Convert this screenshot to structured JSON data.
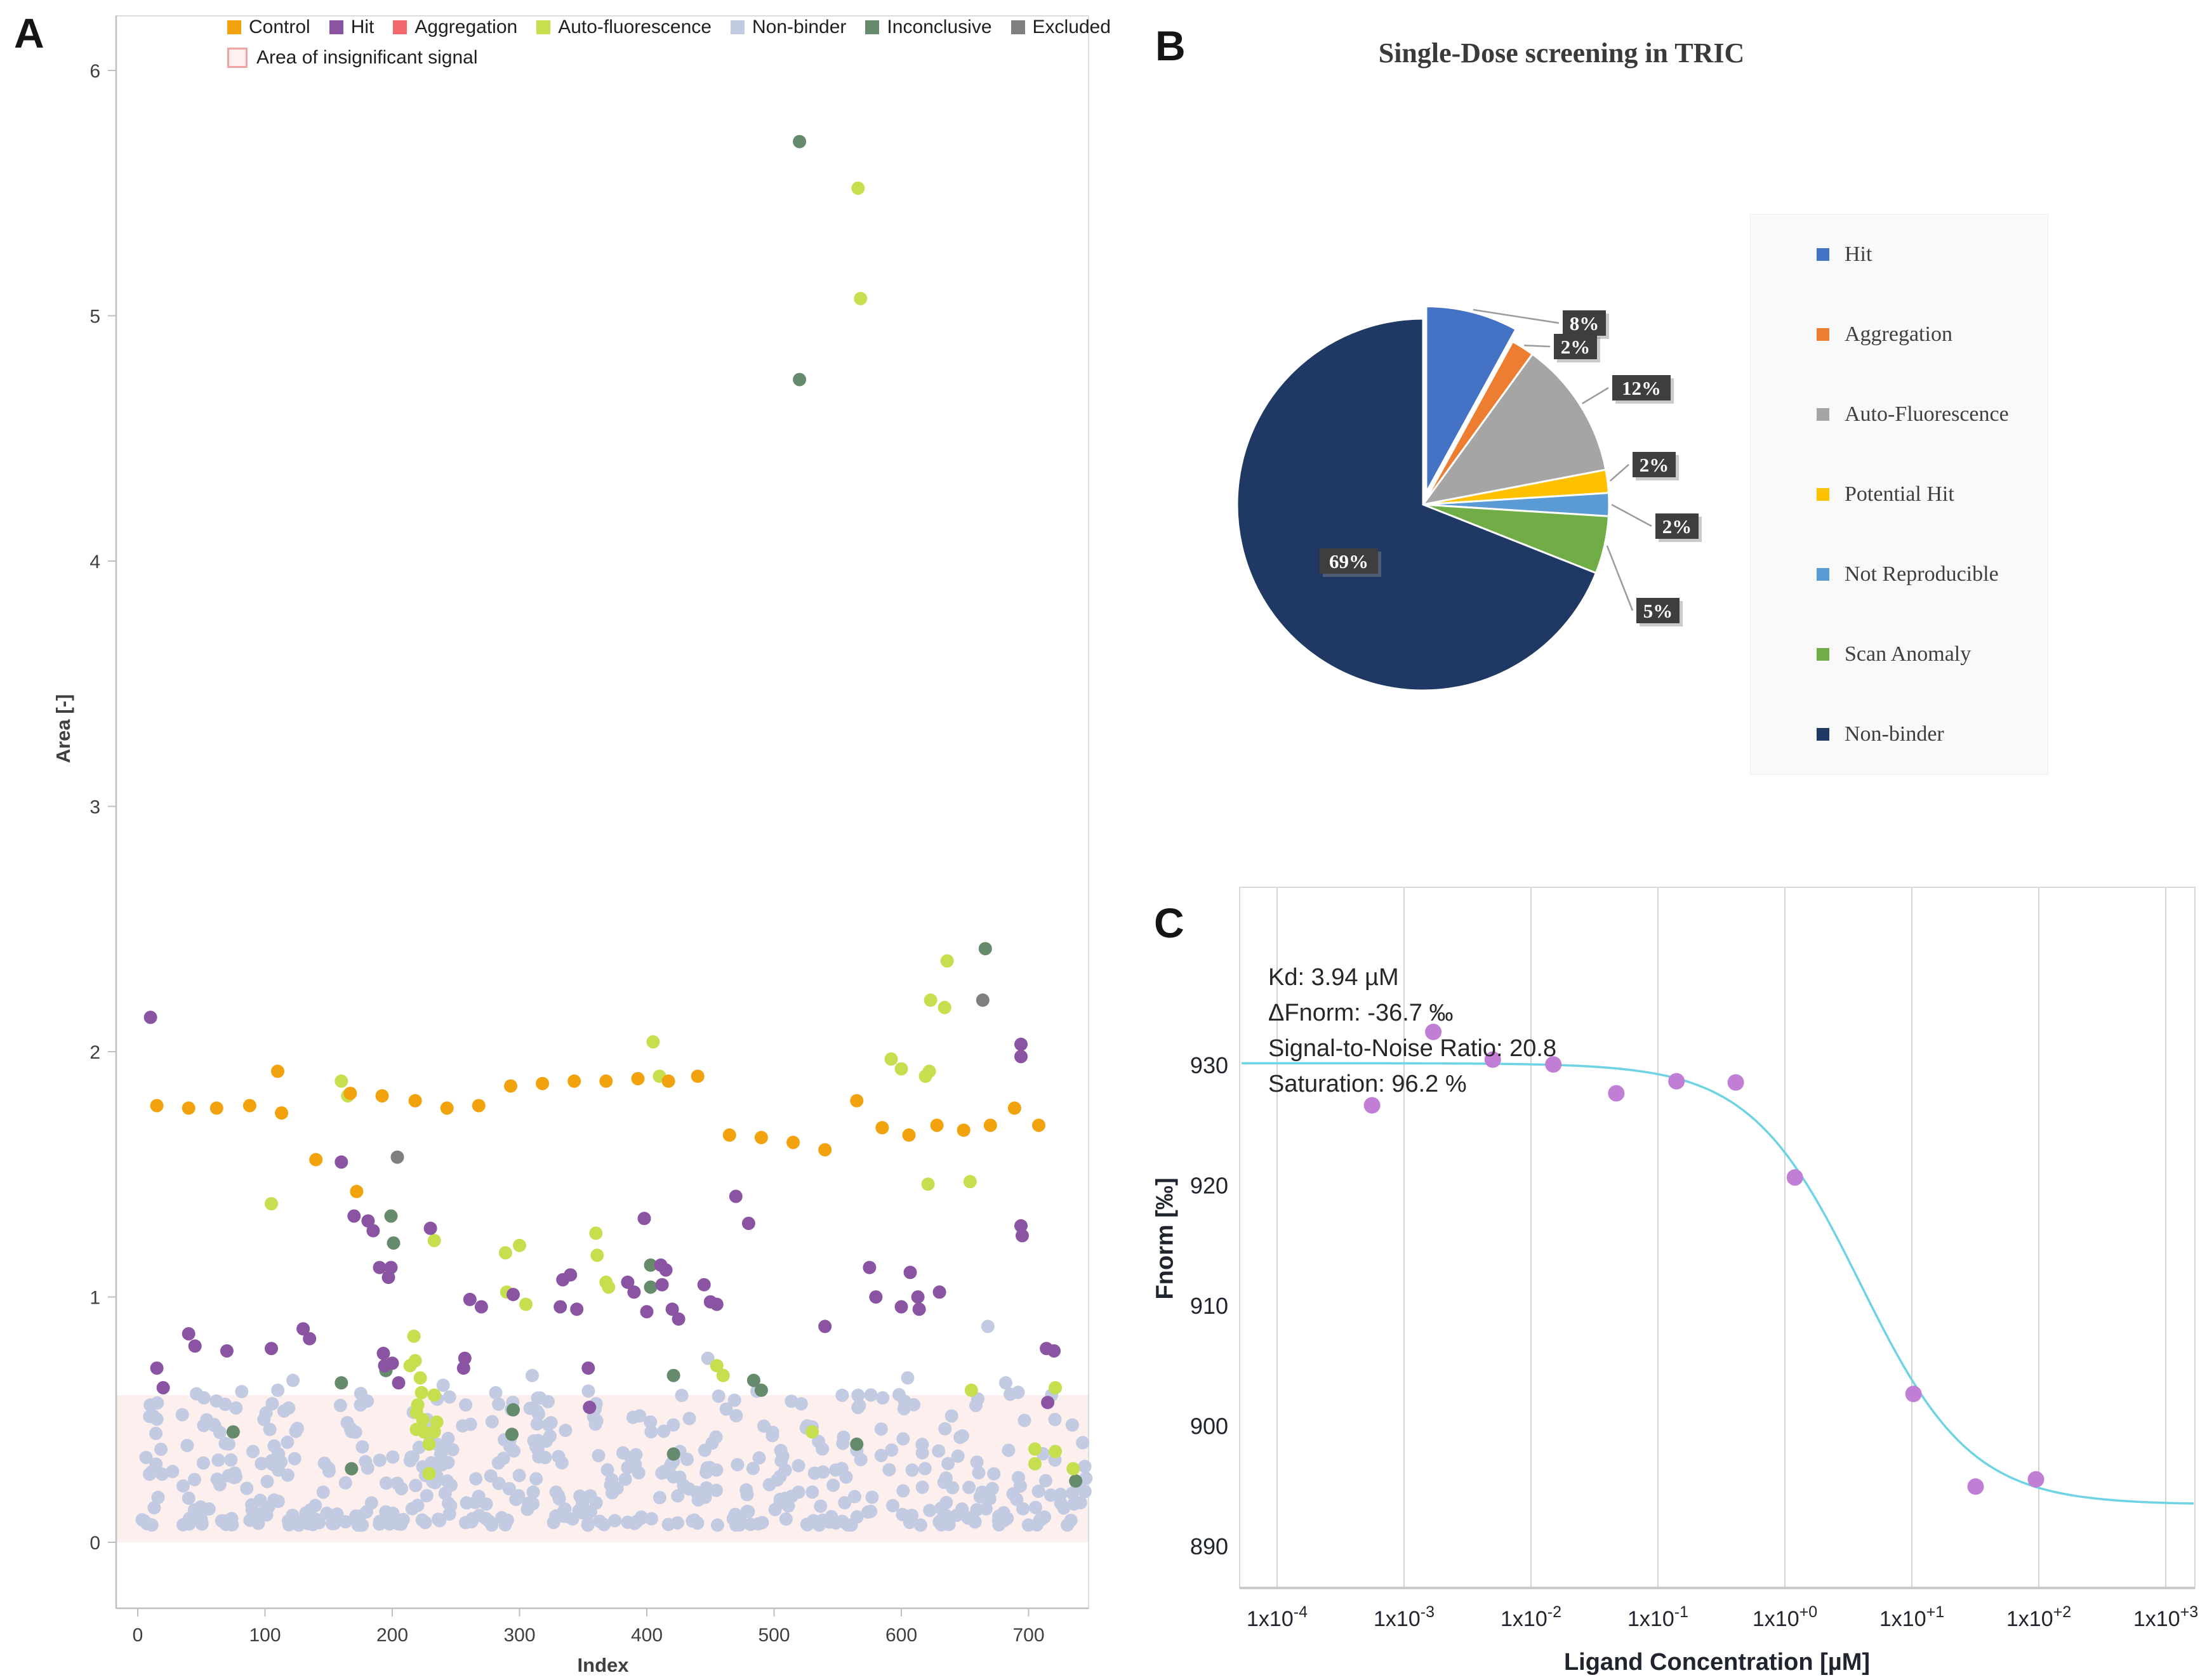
{
  "panel_a": {
    "label": "A",
    "xlabel": "Index",
    "ylabel": "Area [-]",
    "band_label": "Area of insignificant signal",
    "legend_items": [
      {
        "label": "Control",
        "color": "#F2A20D"
      },
      {
        "label": "Hit",
        "color": "#8B54A3"
      },
      {
        "label": "Aggregation",
        "color": "#F2686C"
      },
      {
        "label": "Auto-fluorescence",
        "color": "#C6DF4F"
      },
      {
        "label": "Non-binder",
        "color": "#C2CBE2"
      },
      {
        "label": "Inconclusive",
        "color": "#668A6C"
      },
      {
        "label": "Excluded",
        "color": "#7F7F7F"
      }
    ]
  },
  "panel_b": {
    "label": "B",
    "title": "Single-Dose screening in TRIC",
    "legend_items": [
      {
        "label": "Hit",
        "color": "#4472C4"
      },
      {
        "label": "Aggregation",
        "color": "#ED7D31"
      },
      {
        "label": "Auto-Fluorescence",
        "color": "#A5A5A5"
      },
      {
        "label": "Potential Hit",
        "color": "#FFC000"
      },
      {
        "label": "Not Reproducible",
        "color": "#5B9BD5"
      },
      {
        "label": "Scan Anomaly",
        "color": "#70AD47"
      },
      {
        "label": "Non-binder",
        "color": "#1F3864"
      }
    ]
  },
  "panel_c": {
    "label": "C",
    "xlabel": "Ligand Concentration [µM]",
    "ylabel": "Fnorm [‰]",
    "annotation_lines": [
      "Kd: 3.94 µM",
      "ΔFnorm: -36.7 ‰",
      "Signal-to-Noise Ratio: 20.8",
      "Saturation: 96.2 %"
    ]
  },
  "chart_data": [
    {
      "id": "panel-a-scatter",
      "type": "scatter",
      "xlabel": "Index",
      "ylabel": "Area [-]",
      "xlim": [
        0,
        760
      ],
      "ylim": [
        0,
        6.2
      ],
      "x_ticks": [
        0,
        100,
        200,
        300,
        400,
        500,
        600,
        700
      ],
      "y_ticks": [
        0,
        1,
        2,
        3,
        4,
        5,
        6
      ],
      "grid": false,
      "legend_position": "top",
      "insignificant_band": {
        "label": "Area of insignificant signal",
        "y_min": 0,
        "y_max": 0.6,
        "fill": "#FCEFED"
      },
      "series": [
        {
          "name": "Non-binder",
          "color": "#C2CBE2",
          "points": [
            [
              35,
              0.52
            ],
            [
              122,
              0.66
            ],
            [
              240,
              0.64
            ],
            [
              310,
              0.68
            ],
            [
              448,
              0.75
            ],
            [
              605,
              0.67
            ],
            [
              668,
              0.88
            ],
            [
              682,
              0.65
            ]
          ],
          "generated": {
            "count": 520,
            "seed": 11,
            "x_min": 3,
            "x_max": 746,
            "y_base": 0.07,
            "y_span": 0.55,
            "power": 1.7
          }
        },
        {
          "name": "Excluded",
          "color": "#7F7F7F",
          "points": [
            [
              204,
              1.57
            ],
            [
              664,
              2.21
            ]
          ]
        },
        {
          "name": "Inconclusive",
          "color": "#668A6C",
          "points": [
            [
              75,
              0.45
            ],
            [
              160,
              0.65
            ],
            [
              168,
              0.3
            ],
            [
              195,
              0.7
            ],
            [
              199,
              1.33
            ],
            [
              201,
              1.22
            ],
            [
              294,
              0.44
            ],
            [
              295,
              0.54
            ],
            [
              403,
              1.13
            ],
            [
              403,
              1.04
            ],
            [
              421,
              0.68
            ],
            [
              421,
              0.36
            ],
            [
              484,
              0.66
            ],
            [
              490,
              0.62
            ],
            [
              520,
              5.71
            ],
            [
              520,
              4.74
            ],
            [
              565,
              0.4
            ],
            [
              666,
              2.42
            ],
            [
              737,
              0.25
            ]
          ]
        },
        {
          "name": "Aggregation",
          "color": "#F2686C",
          "points": []
        },
        {
          "name": "Auto-fluorescence",
          "color": "#C6DF4F",
          "points": [
            [
              105,
              1.38
            ],
            [
              160,
              1.88
            ],
            [
              165,
              1.82
            ],
            [
              214,
              0.72
            ],
            [
              217,
              0.84
            ],
            [
              218,
              0.74
            ],
            [
              219,
              0.53
            ],
            [
              219,
              0.46
            ],
            [
              220,
              0.56
            ],
            [
              222,
              0.67
            ],
            [
              223,
              0.61
            ],
            [
              224,
              0.5
            ],
            [
              225,
              0.45
            ],
            [
              229,
              0.4
            ],
            [
              229,
              0.28
            ],
            [
              233,
              1.23
            ],
            [
              233,
              0.6
            ],
            [
              233,
              0.45
            ],
            [
              235,
              0.49
            ],
            [
              289,
              1.18
            ],
            [
              290,
              1.02
            ],
            [
              300,
              1.21
            ],
            [
              305,
              0.97
            ],
            [
              360,
              1.26
            ],
            [
              361,
              1.17
            ],
            [
              368,
              1.06
            ],
            [
              370,
              1.04
            ],
            [
              405,
              2.04
            ],
            [
              410,
              1.9
            ],
            [
              455,
              0.72
            ],
            [
              460,
              0.68
            ],
            [
              530,
              0.45
            ],
            [
              566,
              5.52
            ],
            [
              568,
              5.07
            ],
            [
              592,
              1.97
            ],
            [
              600,
              1.93
            ],
            [
              619,
              1.9
            ],
            [
              621,
              1.46
            ],
            [
              622,
              1.92
            ],
            [
              623,
              2.21
            ],
            [
              634,
              2.18
            ],
            [
              636,
              2.37
            ],
            [
              654,
              1.47
            ],
            [
              655,
              0.62
            ],
            [
              705,
              0.38
            ],
            [
              705,
              0.32
            ],
            [
              721,
              0.63
            ],
            [
              721,
              0.37
            ],
            [
              735,
              0.3
            ]
          ]
        },
        {
          "name": "Control",
          "color": "#F2A20D",
          "points": [
            [
              15,
              1.78
            ],
            [
              40,
              1.77
            ],
            [
              62,
              1.77
            ],
            [
              88,
              1.78
            ],
            [
              110,
              1.92
            ],
            [
              113,
              1.75
            ],
            [
              140,
              1.56
            ],
            [
              167,
              1.83
            ],
            [
              172,
              1.43
            ],
            [
              192,
              1.82
            ],
            [
              218,
              1.8
            ],
            [
              243,
              1.77
            ],
            [
              268,
              1.78
            ],
            [
              293,
              1.86
            ],
            [
              318,
              1.87
            ],
            [
              343,
              1.88
            ],
            [
              368,
              1.88
            ],
            [
              393,
              1.89
            ],
            [
              417,
              1.88
            ],
            [
              440,
              1.9
            ],
            [
              465,
              1.66
            ],
            [
              490,
              1.65
            ],
            [
              515,
              1.63
            ],
            [
              540,
              1.6
            ],
            [
              565,
              1.8
            ],
            [
              585,
              1.69
            ],
            [
              606,
              1.66
            ],
            [
              628,
              1.7
            ],
            [
              649,
              1.68
            ],
            [
              670,
              1.7
            ],
            [
              689,
              1.77
            ],
            [
              708,
              1.7
            ]
          ]
        },
        {
          "name": "Hit",
          "color": "#8B54A3",
          "points": [
            [
              10,
              2.14
            ],
            [
              15,
              0.71
            ],
            [
              20,
              0.63
            ],
            [
              40,
              0.85
            ],
            [
              45,
              0.8
            ],
            [
              70,
              0.78
            ],
            [
              105,
              0.79
            ],
            [
              130,
              0.87
            ],
            [
              135,
              0.83
            ],
            [
              160,
              1.55
            ],
            [
              170,
              1.33
            ],
            [
              181,
              1.31
            ],
            [
              185,
              1.27
            ],
            [
              190,
              1.12
            ],
            [
              197,
              1.08
            ],
            [
              199,
              1.12
            ],
            [
              193,
              0.77
            ],
            [
              194,
              0.72
            ],
            [
              200,
              0.73
            ],
            [
              205,
              0.65
            ],
            [
              230,
              1.28
            ],
            [
              256,
              0.71
            ],
            [
              257,
              0.75
            ],
            [
              261,
              0.99
            ],
            [
              270,
              0.96
            ],
            [
              295,
              1.01
            ],
            [
              332,
              0.96
            ],
            [
              334,
              1.07
            ],
            [
              340,
              1.09
            ],
            [
              345,
              0.95
            ],
            [
              354,
              0.71
            ],
            [
              355,
              0.55
            ],
            [
              385,
              1.06
            ],
            [
              390,
              1.02
            ],
            [
              398,
              1.32
            ],
            [
              400,
              0.94
            ],
            [
              411,
              1.13
            ],
            [
              412,
              1.05
            ],
            [
              415,
              1.11
            ],
            [
              420,
              0.95
            ],
            [
              425,
              0.91
            ],
            [
              445,
              1.05
            ],
            [
              450,
              0.98
            ],
            [
              455,
              0.97
            ],
            [
              470,
              1.41
            ],
            [
              480,
              1.3
            ],
            [
              540,
              0.88
            ],
            [
              575,
              1.12
            ],
            [
              580,
              1
            ],
            [
              600,
              0.96
            ],
            [
              607,
              1.1
            ],
            [
              613,
              1
            ],
            [
              614,
              0.95
            ],
            [
              630,
              1.02
            ],
            [
              694,
              2.03
            ],
            [
              694,
              1.98
            ],
            [
              694,
              1.29
            ],
            [
              695,
              1.25
            ],
            [
              714,
              0.79
            ],
            [
              715,
              0.57
            ],
            [
              720,
              0.78
            ]
          ]
        }
      ]
    },
    {
      "id": "panel-b-pie",
      "type": "pie",
      "title": "Single-Dose screening in TRIC",
      "legend_position": "right",
      "slices": [
        {
          "label": "Hit",
          "value": 8,
          "pct_label": "8%",
          "color": "#4472C4",
          "exploded": true,
          "label_x": 2496,
          "label_y": 509
        },
        {
          "label": "Aggregation",
          "value": 2,
          "pct_label": "2%",
          "color": "#ED7D31",
          "exploded": false,
          "label_x": 2482,
          "label_y": 546
        },
        {
          "label": "Auto-Fluorescence",
          "value": 12,
          "pct_label": "12%",
          "color": "#A5A5A5",
          "exploded": false,
          "label_x": 2586,
          "label_y": 611
        },
        {
          "label": "Potential Hit",
          "value": 2,
          "pct_label": "2%",
          "color": "#FFC000",
          "exploded": false,
          "label_x": 2606,
          "label_y": 732
        },
        {
          "label": "Not Reproducible",
          "value": 2,
          "pct_label": "2%",
          "color": "#5B9BD5",
          "exploded": false,
          "label_x": 2642,
          "label_y": 829
        },
        {
          "label": "Scan Anomaly",
          "value": 5,
          "pct_label": "5%",
          "color": "#70AD47",
          "exploded": false,
          "label_x": 2612,
          "label_y": 962
        },
        {
          "label": "Non-binder",
          "value": 69,
          "pct_label": "69%",
          "color": "#1F3864",
          "exploded": false,
          "label_x": 2125,
          "label_y": 884,
          "label_on_slice": true
        }
      ]
    },
    {
      "id": "panel-c-dose-response",
      "type": "scatter",
      "xlabel": "Ligand Concentration [µM]",
      "ylabel": "Fnorm [‰]",
      "x_scale": "log",
      "x_tick_base": "1x10",
      "x_tick_exponents": [
        "-4",
        "-3",
        "-2",
        "-1",
        "+0",
        "+1",
        "+2",
        "+3"
      ],
      "y_ticks": [
        930,
        920,
        910,
        900,
        890
      ],
      "ylim": [
        886.5,
        945
      ],
      "xlim_log10": [
        -4.28,
        3.23
      ],
      "grid": "vertical",
      "points_color": "#C07FD4",
      "curve_color": "#6ED3E3",
      "points": [
        [
          0.00056,
          926.7
        ],
        [
          0.0017,
          932.8
        ],
        [
          0.005,
          930.5
        ],
        [
          0.015,
          930.1
        ],
        [
          0.047,
          927.7
        ],
        [
          0.14,
          928.7
        ],
        [
          0.41,
          928.6
        ],
        [
          1.2,
          920.7
        ],
        [
          10.3,
          902.7
        ],
        [
          31.8,
          895.0
        ],
        [
          95,
          895.6
        ]
      ],
      "fit": {
        "kd_uM": 3.94,
        "top": 930.2,
        "delta_fnorm": -36.7,
        "signal_to_noise": 20.8,
        "saturation_pct": 96.2
      },
      "annotation": [
        "Kd: 3.94 µM",
        "ΔFnorm: -36.7 ‰",
        "Signal-to-Noise Ratio: 20.8",
        "Saturation: 96.2 %"
      ]
    }
  ]
}
